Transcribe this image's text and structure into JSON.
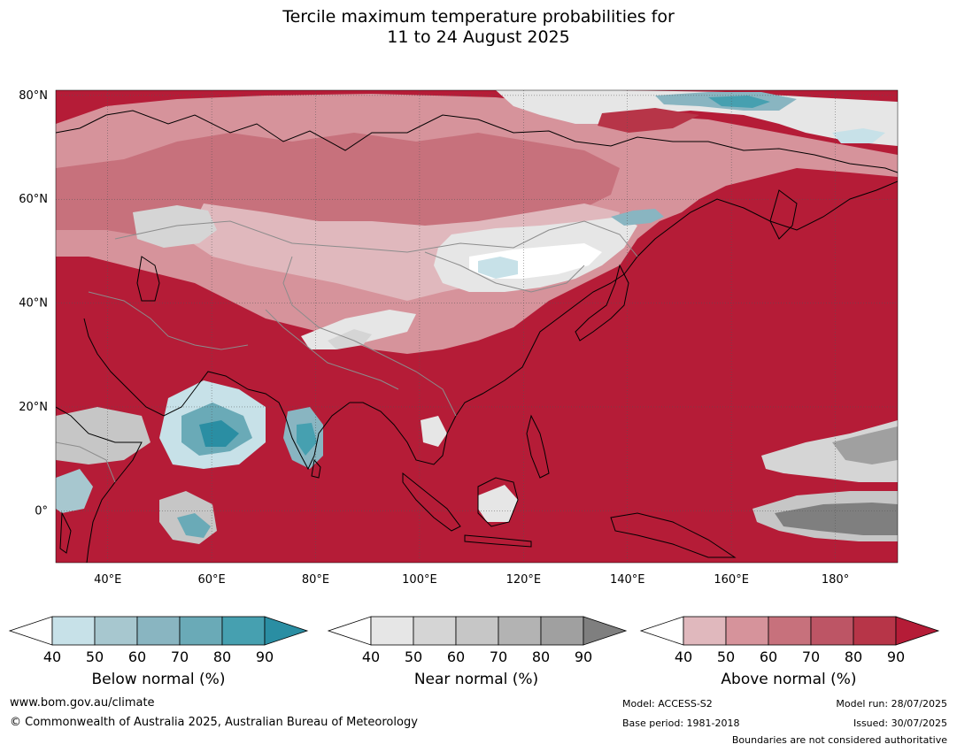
{
  "title": {
    "line1": "Tercile maximum temperature probabilities for",
    "line2": "11 to 24 August 2025"
  },
  "map": {
    "lat_labels": [
      "80°N",
      "60°N",
      "40°N",
      "20°N",
      "0°"
    ],
    "lon_labels": [
      "40°E",
      "60°E",
      "80°E",
      "100°E",
      "120°E",
      "140°E",
      "160°E",
      "180°"
    ],
    "lat_values": [
      80,
      60,
      40,
      20,
      0
    ],
    "lon_values": [
      40,
      60,
      80,
      100,
      120,
      140,
      160,
      180
    ],
    "extent": {
      "lon_min": 30,
      "lon_max": 192,
      "lat_min": -10,
      "lat_max": 81
    },
    "colors": {
      "ocean_above": "#b51c37",
      "above_40": "#e0b8bd",
      "above_50": "#d6939b",
      "above_60": "#c7717c",
      "above_70": "#bd5565",
      "above_80": "#b73548",
      "above_90": "#b51c37",
      "below_40": "#c7e1e8",
      "below_50": "#a7c7cf",
      "below_60": "#89b5c1",
      "below_70": "#6aaab7",
      "below_80": "#46a0b0",
      "below_90": "#2a8ea3",
      "near_40": "#e6e6e6",
      "near_50": "#d5d5d5",
      "near_60": "#c6c6c6",
      "near_70": "#b3b3b3",
      "near_80": "#a0a0a0",
      "near_90": "#7f7f7f"
    }
  },
  "colorbars": [
    {
      "label": "Below normal (%)",
      "ticks": [
        "40",
        "50",
        "60",
        "70",
        "80",
        "90"
      ],
      "colors": [
        "#ffffff",
        "#c7e1e8",
        "#a7c7cf",
        "#89b5c1",
        "#6aaab7",
        "#46a0b0",
        "#2a8ea3"
      ]
    },
    {
      "label": "Near normal (%)",
      "ticks": [
        "40",
        "50",
        "60",
        "70",
        "80",
        "90"
      ],
      "colors": [
        "#ffffff",
        "#e6e6e6",
        "#d5d5d5",
        "#c6c6c6",
        "#b3b3b3",
        "#a0a0a0",
        "#7f7f7f"
      ]
    },
    {
      "label": "Above normal (%)",
      "ticks": [
        "40",
        "50",
        "60",
        "70",
        "80",
        "90"
      ],
      "colors": [
        "#ffffff",
        "#e0b8bd",
        "#d6939b",
        "#c7717c",
        "#bd5565",
        "#b73548",
        "#b51c37"
      ]
    }
  ],
  "footer": {
    "website": "www.bom.gov.au/climate",
    "copyright": "© Commonwealth of Australia 2025, Australian Bureau of Meteorology",
    "model": "Model: ACCESS-S2",
    "base_period": "Base period: 1981-2018",
    "model_run": "Model run: 28/07/2025",
    "issued": "Issued: 30/07/2025",
    "disclaimer": "Boundaries are not considered authoritative"
  }
}
